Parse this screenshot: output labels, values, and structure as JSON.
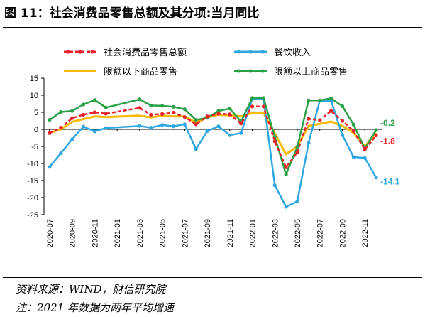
{
  "figure": {
    "title": "图 11：社会消费品零售总额及其分项:当月同比",
    "source": "资料来源：WIND，财信研究院",
    "note": "注：2021 年数据为两年平均增速"
  },
  "chart_data": {
    "type": "line",
    "title": "",
    "xlabel": "",
    "ylabel": "",
    "ylim": [
      -25,
      15
    ],
    "yticks": [
      15,
      10,
      5,
      0,
      -5,
      -10,
      -15,
      -20,
      -25
    ],
    "x_tick_labels": [
      "2020-07",
      "2020-09",
      "2020-11",
      "2021-01",
      "2021-03",
      "2021-05",
      "2021-07",
      "2021-09",
      "2021-11",
      "2022-01",
      "2022-03",
      "2022-05",
      "2022-07",
      "2022-09",
      "2022-11"
    ],
    "x": [
      "2020-07",
      "2020-08",
      "2020-09",
      "2020-10",
      "2020-11",
      "2020-12",
      "2021-01",
      "2021-02",
      "2021-03",
      "2021-04",
      "2021-05",
      "2021-06",
      "2021-07",
      "2021-08",
      "2021-09",
      "2021-10",
      "2021-11",
      "2021-12",
      "2022-01",
      "2022-02",
      "2022-03",
      "2022-04",
      "2022-05",
      "2022-06",
      "2022-07",
      "2022-08",
      "2022-09",
      "2022-10",
      "2022-11",
      "2022-12"
    ],
    "legend_position": "top",
    "grid": false,
    "series": [
      {
        "name": "社会消费品零售总额",
        "color": "#e8212a",
        "style": "dashed-markers",
        "values": [
          -1.1,
          0.5,
          3.3,
          4.3,
          5.0,
          4.6,
          null,
          null,
          6.3,
          4.3,
          4.5,
          4.9,
          3.6,
          1.5,
          3.8,
          4.6,
          4.4,
          1.7,
          6.7,
          6.7,
          -3.5,
          -11.1,
          -6.7,
          3.1,
          2.7,
          5.4,
          2.5,
          -0.5,
          -5.9,
          -1.8
        ]
      },
      {
        "name": "餐饮收入",
        "color": "#2fa7e0",
        "style": "markers",
        "values": [
          -11.0,
          -7.0,
          -2.9,
          0.8,
          -0.6,
          0.4,
          null,
          null,
          1.0,
          0.5,
          1.3,
          0.9,
          1.5,
          -5.8,
          -0.5,
          0.9,
          -1.7,
          -1.1,
          8.9,
          8.9,
          -16.4,
          -22.7,
          -21.1,
          -4.0,
          8.4,
          8.4,
          -1.7,
          -8.1,
          -8.4,
          -14.1
        ]
      },
      {
        "name": "限额以下商品零售",
        "color": "#fbb800",
        "style": "solid",
        "values": [
          -1.0,
          0.0,
          2.2,
          3.0,
          3.8,
          3.6,
          null,
          null,
          4.0,
          3.5,
          4.0,
          3.8,
          3.8,
          2.0,
          3.5,
          4.3,
          4.1,
          3.8,
          4.8,
          4.8,
          -1.2,
          -7.3,
          -5.0,
          1.0,
          1.6,
          2.3,
          1.0,
          -1.0,
          -5.0,
          -1.0
        ]
      },
      {
        "name": "限额以上商品零售",
        "color": "#2aa147",
        "style": "markers",
        "values": [
          2.8,
          5.1,
          5.4,
          7.3,
          8.6,
          6.4,
          null,
          null,
          8.8,
          7.0,
          6.9,
          6.6,
          5.9,
          2.8,
          3.4,
          5.4,
          6.1,
          2.3,
          9.2,
          9.2,
          -2.2,
          -13.2,
          -5.1,
          8.5,
          8.5,
          9.1,
          6.8,
          1.4,
          -5.6,
          -0.2
        ]
      }
    ],
    "end_labels": [
      {
        "series": "限额以上商品零售",
        "text": "-0.2"
      },
      {
        "series": "社会消费品零售总额",
        "text": "-1.8"
      },
      {
        "series": "餐饮收入",
        "text": "-14.1"
      }
    ]
  }
}
